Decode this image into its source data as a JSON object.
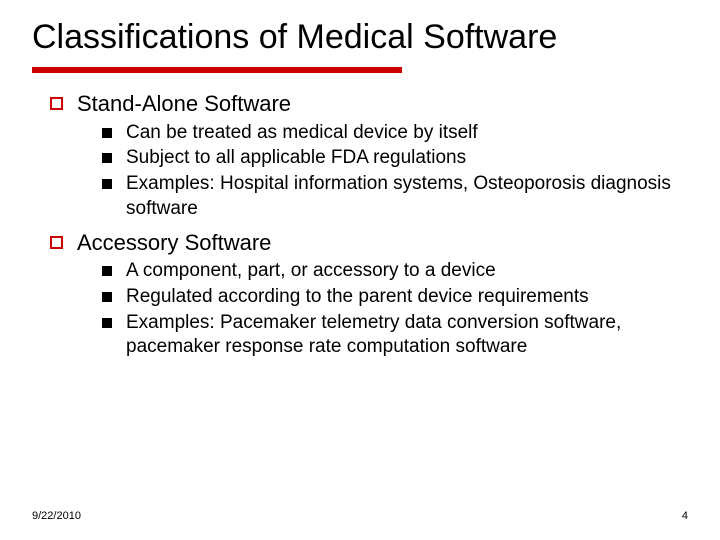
{
  "title": "Classifications of Medical Software",
  "title_fontsize": 34,
  "underline_color": "#cc0000",
  "underline_width": 370,
  "underline_height": 6,
  "background_color": "#ffffff",
  "text_color": "#000000",
  "level1_bullet_border_color": "#cc0000",
  "level2_bullet_color": "#000000",
  "level1_fontsize": 22,
  "level2_fontsize": 19,
  "sections": [
    {
      "heading": "Stand-Alone Software",
      "items": [
        "Can be treated as medical device by itself",
        "Subject to all applicable FDA regulations",
        "Examples: Hospital information systems, Osteoporosis diagnosis software"
      ]
    },
    {
      "heading": "Accessory Software",
      "items": [
        "A component, part, or accessory to a device",
        "Regulated according to the parent device requirements",
        "Examples: Pacemaker telemetry data conversion software, pacemaker response rate computation software"
      ]
    }
  ],
  "footer": {
    "date": "9/22/2010",
    "page": "4"
  },
  "footer_fontsize": 11
}
